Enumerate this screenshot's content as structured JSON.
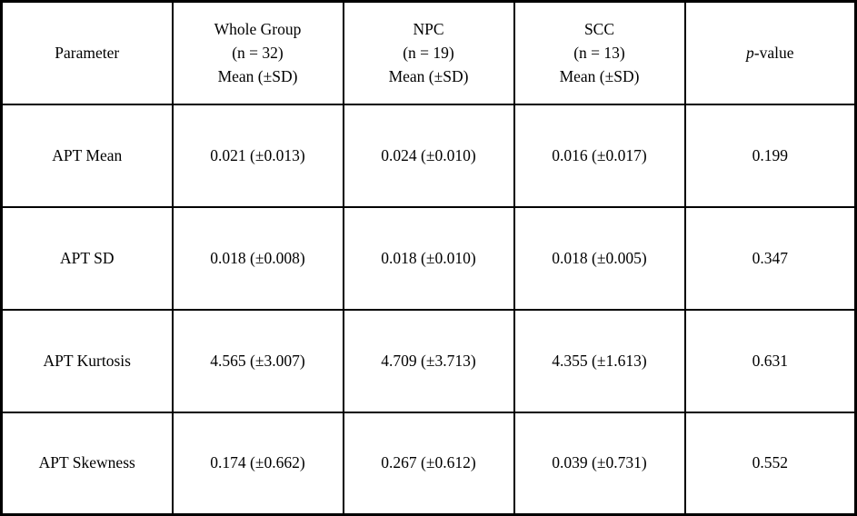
{
  "table": {
    "border_color": "#000000",
    "background_color": "#ffffff",
    "text_color": "#000000",
    "header": {
      "parameter": "Parameter",
      "whole_group": {
        "line1": "Whole Group",
        "line2": "(n = 32)",
        "line3": "Mean (±SD)"
      },
      "npc": {
        "line1": "NPC",
        "line2": "(n = 19)",
        "line3": "Mean (±SD)"
      },
      "scc": {
        "line1": "SCC",
        "line2": "(n = 13)",
        "line3": "Mean (±SD)"
      },
      "p_value": {
        "italic": "p",
        "rest": "-value"
      }
    },
    "rows": [
      {
        "parameter": "APT Mean",
        "whole_group": "0.021 (±0.013)",
        "npc": "0.024 (±0.010)",
        "scc": "0.016 (±0.017)",
        "p_value": "0.199"
      },
      {
        "parameter": "APT SD",
        "whole_group": "0.018 (±0.008)",
        "npc": "0.018 (±0.010)",
        "scc": "0.018 (±0.005)",
        "p_value": "0.347"
      },
      {
        "parameter": "APT Kurtosis",
        "whole_group": "4.565 (±3.007)",
        "npc": "4.709 (±3.713)",
        "scc": "4.355 (±1.613)",
        "p_value": "0.631"
      },
      {
        "parameter": "APT Skewness",
        "whole_group": "0.174 (±0.662)",
        "npc": "0.267 (±0.612)",
        "scc": "0.039 (±0.731)",
        "p_value": "0.552"
      }
    ]
  }
}
